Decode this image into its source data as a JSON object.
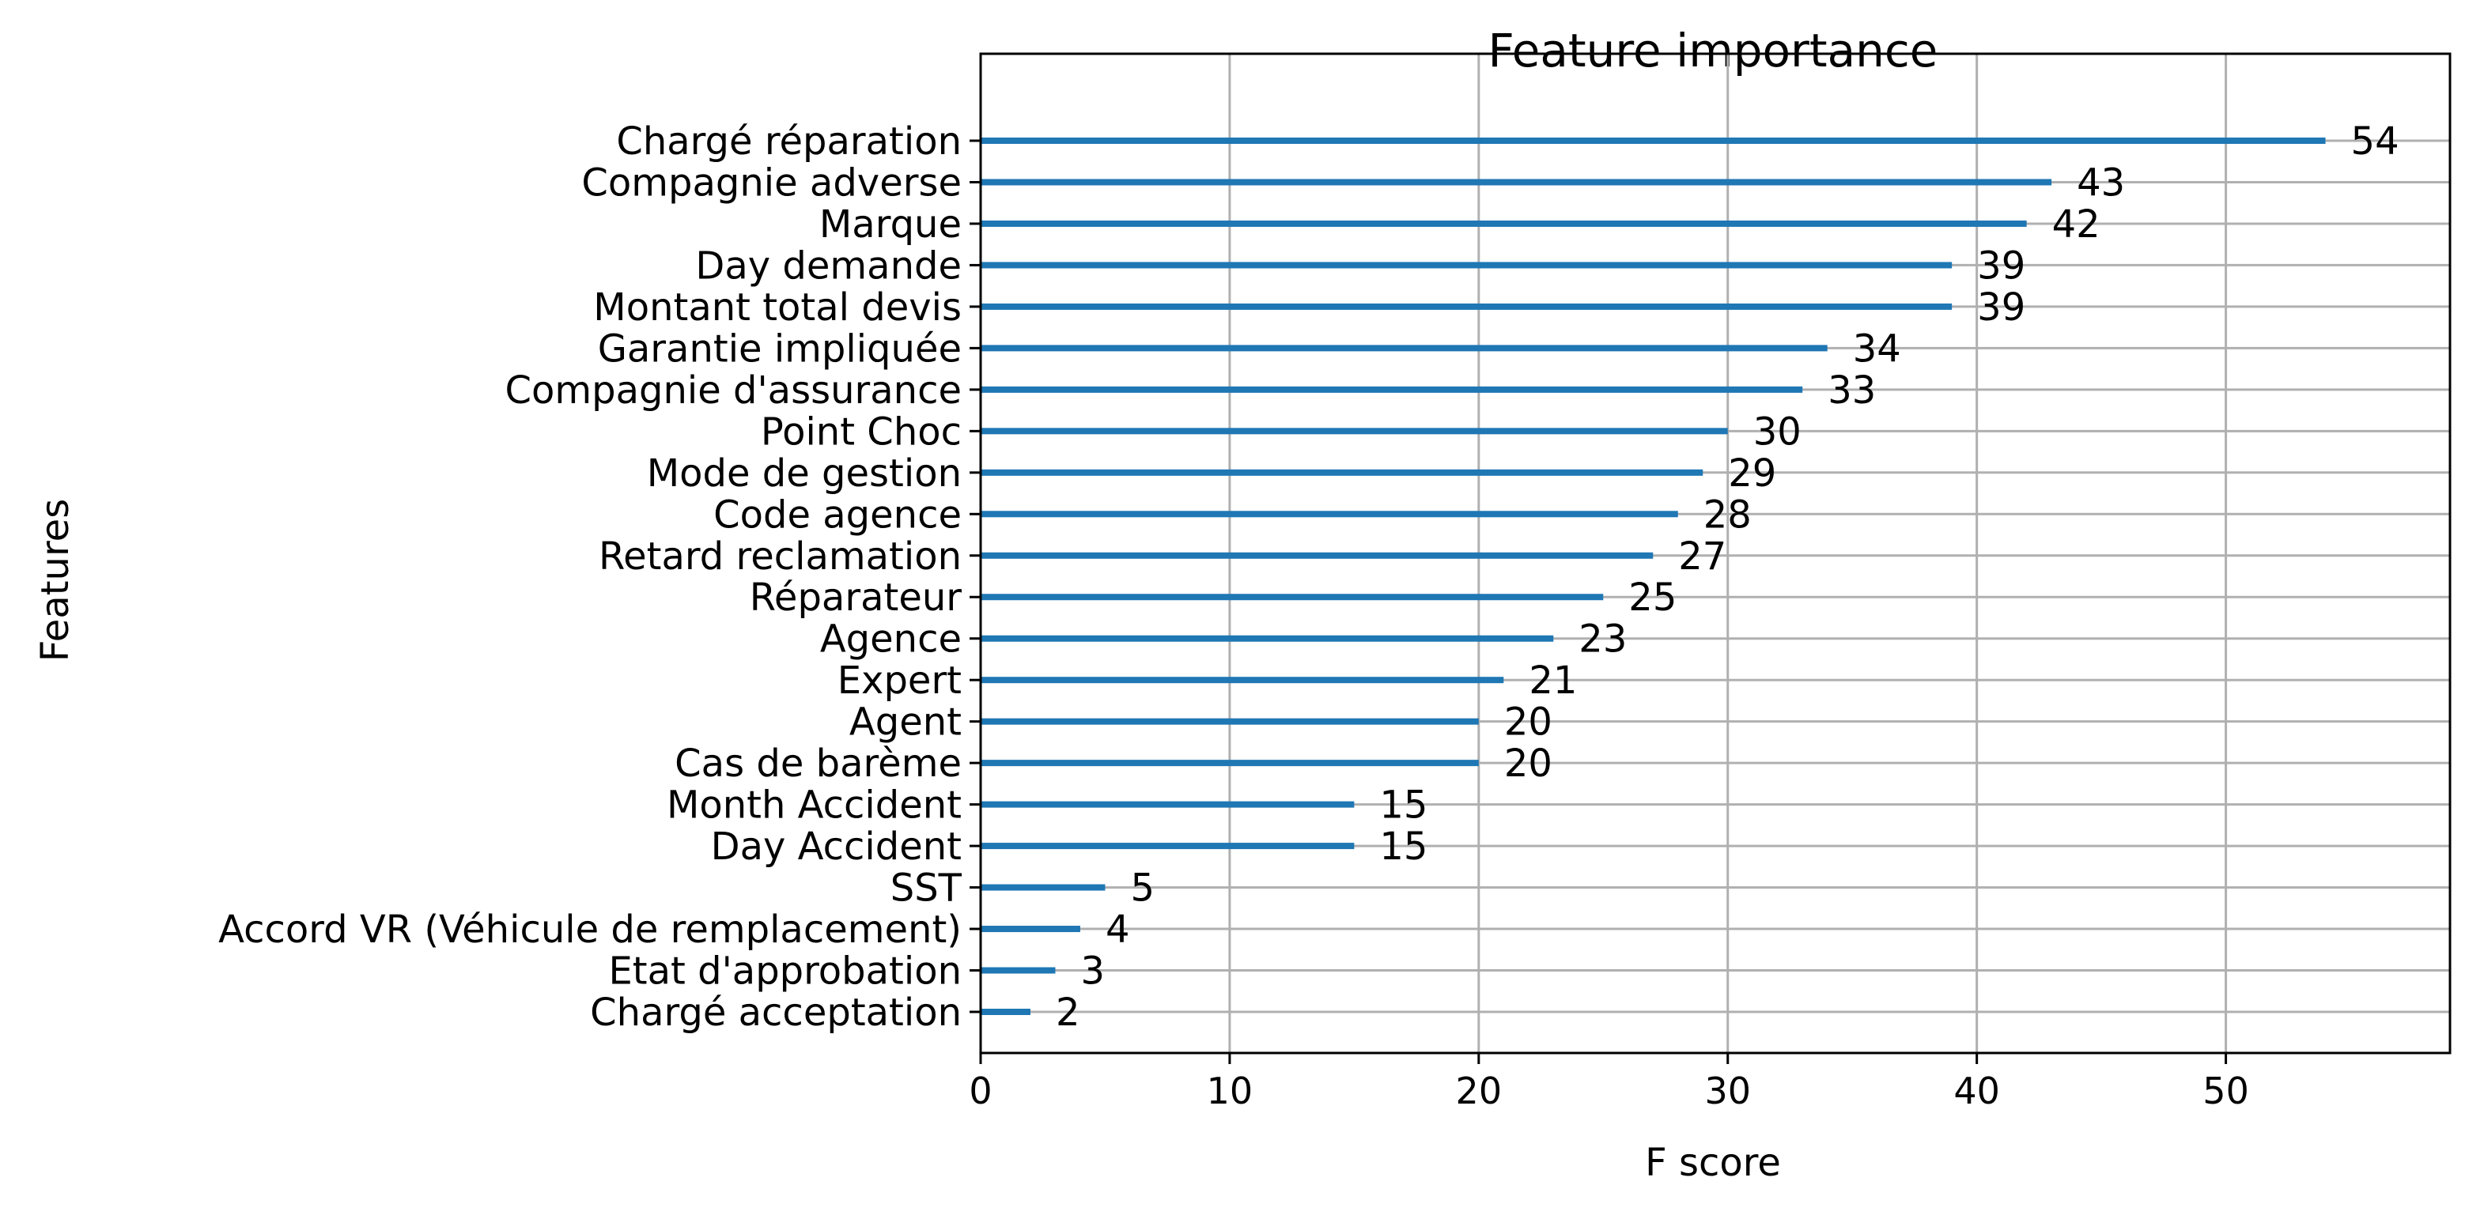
{
  "chart_data": {
    "type": "bar",
    "orientation": "horizontal",
    "title": "Feature importance",
    "xlabel": "F score",
    "ylabel": "Features",
    "xlim": [
      0,
      59
    ],
    "xticks": [
      0,
      10,
      20,
      30,
      40,
      50
    ],
    "grid": true,
    "bar_color": "#1f77b4",
    "categories": [
      "Chargé réparation",
      "Compagnie adverse",
      "Marque",
      "Day demande",
      "Montant total devis",
      "Garantie impliquée",
      "Compagnie d'assurance",
      "Point Choc",
      "Mode de gestion",
      "Code agence",
      "Retard reclamation",
      "Réparateur",
      "Agence",
      "Expert",
      "Agent",
      "Cas de barème",
      "Month Accident",
      "Day Accident",
      "SST",
      "Accord VR (Véhicule de remplacement)",
      "Etat d'approbation",
      "Chargé acceptation"
    ],
    "values": [
      54,
      43,
      42,
      39,
      39,
      34,
      33,
      30,
      29,
      28,
      27,
      25,
      23,
      21,
      20,
      20,
      15,
      15,
      5,
      4,
      3,
      2
    ]
  }
}
